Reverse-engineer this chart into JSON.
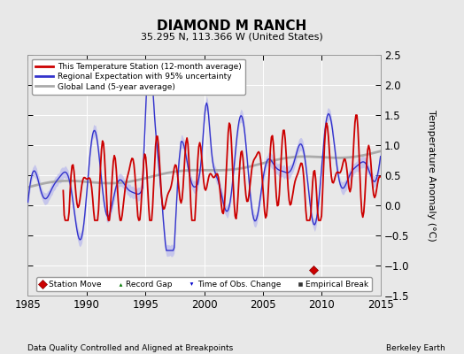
{
  "title": "DIAMOND M RANCH",
  "subtitle": "35.295 N, 113.366 W (United States)",
  "xlabel_left": "Data Quality Controlled and Aligned at Breakpoints",
  "xlabel_right": "Berkeley Earth",
  "ylabel": "Temperature Anomaly (°C)",
  "xlim": [
    1985,
    2015
  ],
  "ylim": [
    -1.5,
    2.5
  ],
  "yticks": [
    -1.5,
    -1.0,
    -0.5,
    0,
    0.5,
    1.0,
    1.5,
    2.0,
    2.5
  ],
  "xticks": [
    1985,
    1990,
    1995,
    2000,
    2005,
    2010,
    2015
  ],
  "bg_color": "#e8e8e8",
  "plot_bg_color": "#e8e8e8",
  "station_line_color": "#cc0000",
  "regional_line_color": "#3333cc",
  "regional_shade_color": "#aaaaee",
  "global_line_color": "#aaaaaa",
  "marker_station_move_x": 2009.3,
  "marker_station_move_y": -1.07,
  "seed": 42
}
